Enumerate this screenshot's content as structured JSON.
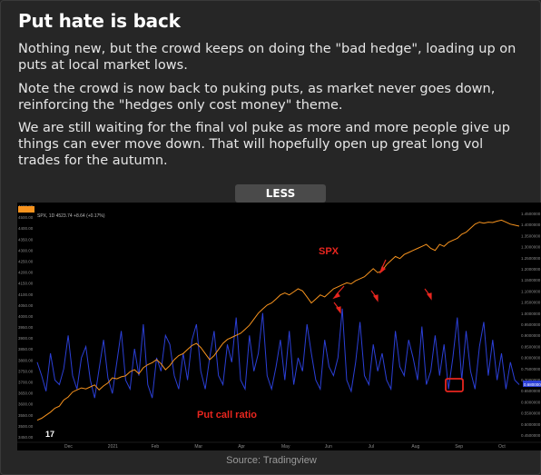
{
  "post": {
    "title": "Put hate is back",
    "paragraphs": [
      "Nothing new, but the crowd keeps on doing the \"bad hedge\", loading up on puts at local market lows.",
      "Note the crowd is now back to puking puts, as market never goes down, reinforcing the \"hedges only cost money\" theme.",
      "We are still waiting for the final vol puke as more and more people give up things can ever move down. That will hopefully open up great long vol trades for the autumn."
    ],
    "less_button": "LESS",
    "source": "Source: Tradingview"
  },
  "colors": {
    "spx": "#f7931e",
    "ratio": "#2b3fd6",
    "annotation": "#e8261f",
    "background": "#000000"
  },
  "chart_data": {
    "type": "line",
    "header_text": "SPX, 1D",
    "header_value": "4523.74 +8.64 (+0.17%)",
    "x_ticks": [
      "Dec",
      "2021",
      "Feb",
      "Mar",
      "Apr",
      "May",
      "Jun",
      "Jul",
      "Aug",
      "Sep",
      "Oct"
    ],
    "left_ticks": [
      "4600.00",
      "4500.00",
      "4400.00",
      "4350.00",
      "4300.00",
      "4250.00",
      "4200.00",
      "4150.00",
      "4100.00",
      "4050.00",
      "4000.00",
      "3950.00",
      "3900.00",
      "3850.00",
      "3800.00",
      "3750.00",
      "3700.00",
      "3650.00",
      "3600.00",
      "3550.00",
      "3500.00",
      "3450.00"
    ],
    "right_ticks": [
      "1.4500000",
      "1.4000000",
      "1.3500000",
      "1.3000000",
      "1.2500000",
      "1.2000000",
      "1.1500000",
      "1.1000000",
      "1.0500000",
      "1.0000000",
      "0.9500000",
      "0.9000000",
      "0.8500000",
      "0.8000000",
      "0.7500000",
      "0.7000000",
      "0.6500000",
      "0.6000000",
      "0.5500000",
      "0.5000000",
      "0.4500000"
    ],
    "right_current_label": "0.6800000",
    "annotations": [
      "SPX",
      "Put call ratio"
    ],
    "series": [
      {
        "name": "SPX",
        "values": [
          3550,
          3560,
          3575,
          3590,
          3610,
          3620,
          3650,
          3665,
          3690,
          3700,
          3710,
          3705,
          3715,
          3725,
          3700,
          3720,
          3735,
          3760,
          3755,
          3765,
          3770,
          3790,
          3800,
          3780,
          3810,
          3825,
          3835,
          3850,
          3830,
          3800,
          3820,
          3850,
          3870,
          3880,
          3900,
          3920,
          3930,
          3910,
          3880,
          3850,
          3870,
          3900,
          3930,
          3950,
          3960,
          3970,
          3980,
          4000,
          4020,
          4050,
          4080,
          4100,
          4120,
          4130,
          4150,
          4170,
          4180,
          4170,
          4185,
          4200,
          4190,
          4160,
          4130,
          4150,
          4170,
          4160,
          4180,
          4200,
          4210,
          4220,
          4230,
          4225,
          4240,
          4250,
          4260,
          4280,
          4300,
          4280,
          4290,
          4320,
          4340,
          4360,
          4350,
          4370,
          4380,
          4390,
          4400,
          4410,
          4420,
          4400,
          4390,
          4420,
          4410,
          4430,
          4440,
          4450,
          4470,
          4480,
          4500,
          4520,
          4530,
          4525,
          4530,
          4528,
          4535,
          4540,
          4530,
          4520,
          4515,
          4510
        ],
        "min": 3450,
        "max": 4600
      },
      {
        "name": "Put call ratio",
        "values": [
          0.78,
          0.72,
          0.65,
          0.82,
          0.7,
          0.68,
          0.75,
          0.9,
          0.72,
          0.66,
          0.8,
          0.85,
          0.7,
          0.62,
          0.75,
          0.88,
          0.71,
          0.64,
          0.78,
          0.92,
          0.7,
          0.66,
          0.84,
          0.72,
          0.95,
          0.68,
          0.62,
          0.8,
          0.74,
          0.9,
          0.86,
          0.72,
          0.66,
          0.82,
          0.7,
          0.88,
          0.95,
          0.74,
          0.66,
          0.8,
          0.92,
          0.72,
          0.68,
          0.86,
          0.78,
          0.98,
          0.7,
          0.66,
          0.9,
          0.74,
          0.82,
          1.0,
          0.72,
          0.66,
          0.76,
          0.88,
          0.7,
          0.92,
          0.68,
          0.8,
          0.74,
          0.95,
          0.82,
          0.7,
          0.66,
          0.88,
          0.76,
          0.72,
          0.8,
          1.02,
          0.7,
          0.65,
          0.78,
          0.96,
          0.72,
          0.68,
          0.86,
          0.74,
          0.82,
          0.7,
          0.66,
          0.92,
          0.76,
          0.72,
          0.88,
          0.8,
          0.7,
          0.94,
          0.68,
          0.74,
          0.9,
          0.72,
          0.86,
          0.66,
          0.8,
          0.98,
          0.7,
          0.92,
          0.74,
          0.66,
          0.85,
          0.96,
          0.72,
          0.88,
          0.7,
          0.82,
          0.66,
          0.78,
          0.7,
          0.68
        ],
        "min": 0.43,
        "max": 1.47
      }
    ]
  }
}
